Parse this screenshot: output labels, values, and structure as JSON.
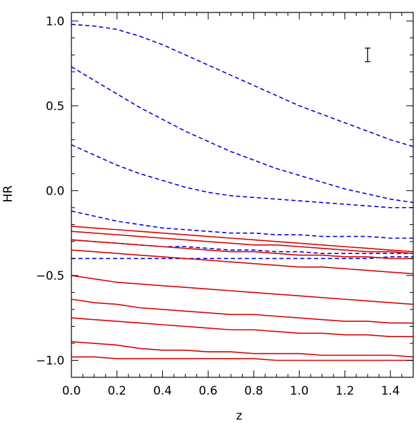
{
  "chart_data": {
    "type": "line",
    "title": "",
    "xlabel": "z",
    "ylabel": "HR",
    "xlim": [
      0.0,
      1.5
    ],
    "ylim": [
      -1.1,
      1.05
    ],
    "grid": false,
    "legend": "none",
    "x_ticks": [
      0.0,
      0.2,
      0.4,
      0.6,
      0.8,
      1.0,
      1.2,
      1.4
    ],
    "x_tick_labels": [
      "0.0",
      "0.2",
      "0.4",
      "0.6",
      "0.8",
      "1.0",
      "1.2",
      "1.4"
    ],
    "y_ticks": [
      1.0,
      0.5,
      0.0,
      -0.5,
      -1.0
    ],
    "y_tick_labels": [
      "1.0",
      "0.5",
      "0.0",
      "−0.5",
      "−1.0"
    ],
    "x": [
      0.0,
      0.1,
      0.2,
      0.3,
      0.4,
      0.5,
      0.6,
      0.7,
      0.8,
      0.9,
      1.0,
      1.1,
      1.2,
      1.3,
      1.4,
      1.5
    ],
    "series": [
      {
        "style": "dashed",
        "color": "#0000dd",
        "values": [
          0.98,
          0.97,
          0.95,
          0.91,
          0.86,
          0.8,
          0.74,
          0.68,
          0.62,
          0.56,
          0.5,
          0.45,
          0.4,
          0.35,
          0.3,
          0.26
        ]
      },
      {
        "style": "dashed",
        "color": "#0000dd",
        "values": [
          0.73,
          0.65,
          0.57,
          0.49,
          0.42,
          0.35,
          0.29,
          0.23,
          0.18,
          0.13,
          0.09,
          0.05,
          0.01,
          -0.02,
          -0.05,
          -0.07
        ]
      },
      {
        "style": "dashed",
        "color": "#0000dd",
        "values": [
          0.27,
          0.21,
          0.15,
          0.1,
          0.06,
          0.02,
          -0.01,
          -0.03,
          -0.04,
          -0.05,
          -0.06,
          -0.07,
          -0.08,
          -0.09,
          -0.1,
          -0.1
        ]
      },
      {
        "style": "dashed",
        "color": "#0000dd",
        "values": [
          -0.12,
          -0.15,
          -0.18,
          -0.2,
          -0.22,
          -0.23,
          -0.24,
          -0.25,
          -0.25,
          -0.26,
          -0.26,
          -0.27,
          -0.27,
          -0.27,
          -0.28,
          -0.28
        ]
      },
      {
        "style": "dashed",
        "color": "#0000dd",
        "values": [
          -0.29,
          -0.3,
          -0.31,
          -0.32,
          -0.33,
          -0.33,
          -0.34,
          -0.35,
          -0.35,
          -0.36,
          -0.36,
          -0.37,
          -0.37,
          -0.37,
          -0.37,
          -0.37
        ]
      },
      {
        "style": "dashed",
        "color": "#0000dd",
        "values": [
          -0.4,
          -0.4,
          -0.4,
          -0.4,
          -0.4,
          -0.4,
          -0.4,
          -0.4,
          -0.4,
          -0.4,
          -0.4,
          -0.4,
          -0.4,
          -0.4,
          -0.39,
          -0.39
        ]
      },
      {
        "style": "solid",
        "color": "#dd0000",
        "values": [
          -0.21,
          -0.22,
          -0.23,
          -0.24,
          -0.25,
          -0.26,
          -0.27,
          -0.28,
          -0.29,
          -0.3,
          -0.31,
          -0.32,
          -0.33,
          -0.34,
          -0.35,
          -0.36
        ]
      },
      {
        "style": "solid",
        "color": "#dd0000",
        "values": [
          -0.24,
          -0.25,
          -0.26,
          -0.27,
          -0.28,
          -0.29,
          -0.3,
          -0.31,
          -0.32,
          -0.32,
          -0.33,
          -0.34,
          -0.35,
          -0.36,
          -0.36,
          -0.37
        ]
      },
      {
        "style": "solid",
        "color": "#dd0000",
        "values": [
          -0.29,
          -0.3,
          -0.31,
          -0.32,
          -0.33,
          -0.34,
          -0.35,
          -0.36,
          -0.36,
          -0.37,
          -0.38,
          -0.38,
          -0.39,
          -0.39,
          -0.4,
          -0.4
        ]
      },
      {
        "style": "solid",
        "color": "#dd0000",
        "values": [
          -0.35,
          -0.36,
          -0.37,
          -0.38,
          -0.39,
          -0.4,
          -0.41,
          -0.42,
          -0.43,
          -0.44,
          -0.45,
          -0.45,
          -0.46,
          -0.47,
          -0.48,
          -0.49
        ]
      },
      {
        "style": "solid",
        "color": "#dd0000",
        "values": [
          -0.5,
          -0.52,
          -0.54,
          -0.55,
          -0.56,
          -0.57,
          -0.58,
          -0.59,
          -0.6,
          -0.61,
          -0.62,
          -0.63,
          -0.64,
          -0.65,
          -0.66,
          -0.67
        ]
      },
      {
        "style": "solid",
        "color": "#dd0000",
        "values": [
          -0.64,
          -0.66,
          -0.67,
          -0.69,
          -0.7,
          -0.71,
          -0.72,
          -0.73,
          -0.73,
          -0.74,
          -0.75,
          -0.76,
          -0.77,
          -0.77,
          -0.78,
          -0.78
        ]
      },
      {
        "style": "solid",
        "color": "#dd0000",
        "values": [
          -0.75,
          -0.76,
          -0.77,
          -0.78,
          -0.79,
          -0.8,
          -0.81,
          -0.82,
          -0.82,
          -0.83,
          -0.84,
          -0.84,
          -0.85,
          -0.85,
          -0.86,
          -0.86
        ]
      },
      {
        "style": "solid",
        "color": "#dd0000",
        "values": [
          -0.89,
          -0.9,
          -0.91,
          -0.93,
          -0.94,
          -0.94,
          -0.95,
          -0.95,
          -0.96,
          -0.96,
          -0.96,
          -0.97,
          -0.97,
          -0.97,
          -0.97,
          -0.98
        ]
      },
      {
        "style": "solid",
        "color": "#dd0000",
        "values": [
          -0.98,
          -0.98,
          -0.99,
          -0.99,
          -0.99,
          -0.99,
          -0.99,
          -0.99,
          -0.99,
          -1.0,
          -1.0,
          -1.0,
          -1.0,
          -1.0,
          -1.0,
          -1.0
        ]
      }
    ],
    "error_bar": {
      "x": 1.3,
      "y_low": 0.76,
      "y_high": 0.84
    }
  }
}
